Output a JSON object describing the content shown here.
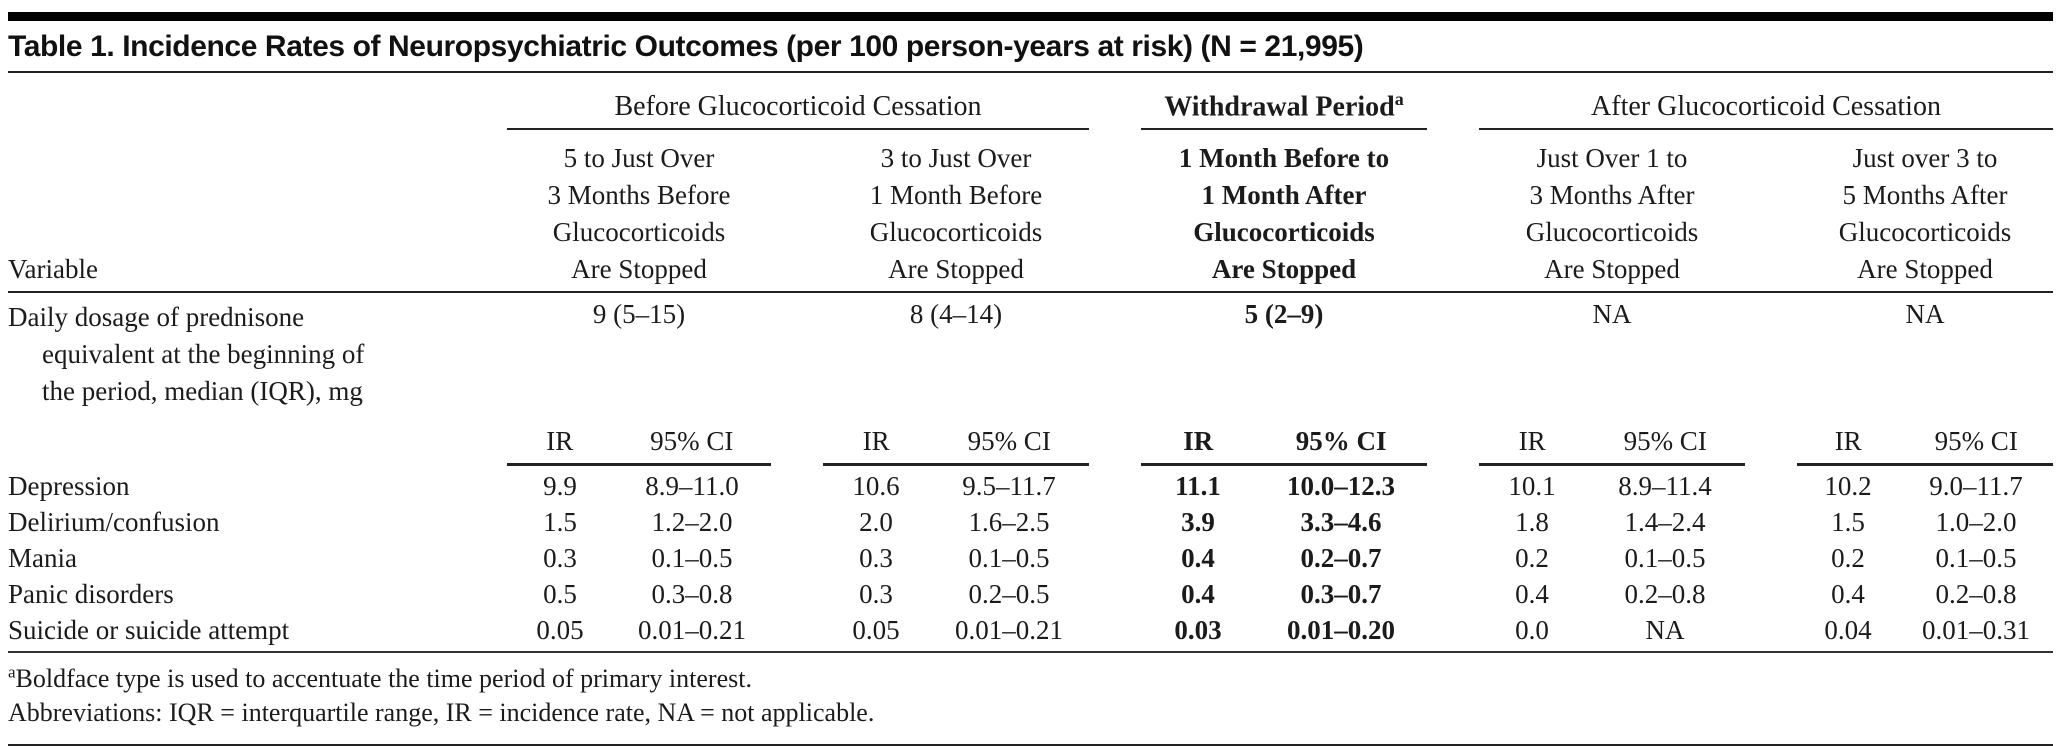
{
  "title": "Table 1. Incidence Rates of Neuropsychiatric Outcomes (per 100 person-years at risk) (N = 21,995)",
  "header": {
    "variable": "Variable",
    "groups": {
      "before": "Before Glucocorticoid Cessation",
      "withdrawal": "Withdrawal Period",
      "withdrawal_sup": "a",
      "after": "After Glucocorticoid Cessation"
    },
    "periods": [
      "5 to Just Over\n3 Months Before\nGlucocorticoids\nAre Stopped",
      "3 to Just Over\n1 Month Before\nGlucocorticoids\nAre Stopped",
      "1 Month Before to\n1 Month After\nGlucocorticoids\nAre Stopped",
      "Just Over 1 to\n3 Months After\nGlucocorticoids\nAre Stopped",
      "Just over 3 to\n5 Months After\nGlucocorticoids\nAre Stopped"
    ],
    "stat_labels": {
      "ir": "IR",
      "ci": "95% CI"
    }
  },
  "dosage_row": {
    "label": "Daily dosage of prednisone\nequivalent at the beginning of\nthe period, median (IQR), mg",
    "values": [
      "9 (5–15)",
      "8 (4–14)",
      "5 (2–9)",
      "NA",
      "NA"
    ]
  },
  "rows": [
    {
      "label": "Depression",
      "values": [
        "9.9",
        "8.9–11.0",
        "10.6",
        "9.5–11.7",
        "11.1",
        "10.0–12.3",
        "10.1",
        "8.9–11.4",
        "10.2",
        "9.0–11.7"
      ]
    },
    {
      "label": "Delirium/confusion",
      "values": [
        "1.5",
        "1.2–2.0",
        "2.0",
        "1.6–2.5",
        "3.9",
        "3.3–4.6",
        "1.8",
        "1.4–2.4",
        "1.5",
        "1.0–2.0"
      ]
    },
    {
      "label": "Mania",
      "values": [
        "0.3",
        "0.1–0.5",
        "0.3",
        "0.1–0.5",
        "0.4",
        "0.2–0.7",
        "0.2",
        "0.1–0.5",
        "0.2",
        "0.1–0.5"
      ]
    },
    {
      "label": "Panic disorders",
      "values": [
        "0.5",
        "0.3–0.8",
        "0.3",
        "0.2–0.5",
        "0.4",
        "0.3–0.7",
        "0.4",
        "0.2–0.8",
        "0.4",
        "0.2–0.8"
      ]
    },
    {
      "label": "Suicide or suicide attempt",
      "values": [
        "0.05",
        "0.01–0.21",
        "0.05",
        "0.01–0.21",
        "0.03",
        "0.01–0.20",
        "0.0",
        "NA",
        "0.04",
        "0.01–0.31"
      ]
    }
  ],
  "footnotes": {
    "a_sup": "a",
    "a_text": "Boldface type is used to accentuate the time period of primary interest.",
    "abbreviations": "Abbreviations: IQR = interquartile range, IR = incidence rate, NA = not applicable."
  },
  "colors": {
    "background": "#ffffff",
    "text": "#1b1b1b",
    "rule": "#222222"
  }
}
